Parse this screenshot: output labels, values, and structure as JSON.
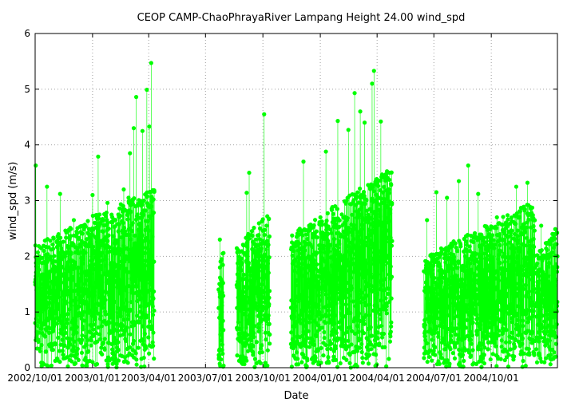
{
  "chart_data": {
    "type": "line",
    "title": "CEOP CAMP-ChaoPhrayaRiver Lampang Height 24.00 wind_spd",
    "xlabel": "Date",
    "ylabel": "wind_spd (m/s)",
    "xlim": [
      "2002/10/01",
      "2005/01/15"
    ],
    "ylim": [
      0,
      6
    ],
    "grid": true,
    "legend": "none",
    "x_ticks": [
      "2002/10/01",
      "2003/01/01",
      "2003/04/01",
      "2003/07/01",
      "2003/10/01",
      "2004/01/01",
      "2004/04/01",
      "2004/07/01",
      "2004/10/01"
    ],
    "y_ticks": [
      0,
      1,
      2,
      3,
      4,
      5,
      6
    ],
    "series_color": "#00ff00",
    "segments": [
      {
        "start": "2002/10/01",
        "end": "2003/04/10",
        "base_max": [
          2.2,
          3.3
        ],
        "spikes": [
          [
            "2002/10/02",
            3.63
          ],
          [
            "2002/10/20",
            3.25
          ],
          [
            "2002/11/10",
            3.12
          ],
          [
            "2002/12/02",
            2.65
          ],
          [
            "2003/01/01",
            3.1
          ],
          [
            "2003/01/10",
            3.79
          ],
          [
            "2003/01/25",
            2.96
          ],
          [
            "2003/02/20",
            3.2
          ],
          [
            "2003/03/02",
            3.85
          ],
          [
            "2003/03/08",
            4.3
          ],
          [
            "2003/03/12",
            4.86
          ],
          [
            "2003/03/22",
            4.25
          ],
          [
            "2003/03/29",
            4.99
          ],
          [
            "2003/04/02",
            4.33
          ],
          [
            "2003/04/05",
            5.47
          ]
        ]
      },
      {
        "start": "2003/07/22",
        "end": "2003/07/30",
        "base_max": [
          1.8,
          2.3
        ],
        "spikes": [
          [
            "2003/07/24",
            2.3
          ]
        ]
      },
      {
        "start": "2003/08/20",
        "end": "2003/10/12",
        "base_max": [
          2.2,
          2.8
        ],
        "spikes": [
          [
            "2003/09/05",
            3.14
          ],
          [
            "2003/09/09",
            3.5
          ],
          [
            "2003/10/03",
            4.55
          ]
        ]
      },
      {
        "start": "2003/11/15",
        "end": "2004/04/25",
        "base_max": [
          2.4,
          3.6
        ],
        "spikes": [
          [
            "2003/12/05",
            3.7
          ],
          [
            "2004/01/10",
            3.88
          ],
          [
            "2004/01/29",
            4.43
          ],
          [
            "2004/02/15",
            4.27
          ],
          [
            "2004/02/25",
            4.93
          ],
          [
            "2004/03/05",
            4.6
          ],
          [
            "2004/03/12",
            4.4
          ],
          [
            "2004/03/24",
            5.1
          ],
          [
            "2004/03/27",
            5.33
          ],
          [
            "2004/04/07",
            4.42
          ]
        ]
      },
      {
        "start": "2004/06/15",
        "end": "2004/12/10",
        "base_max": [
          2.0,
          3.0
        ],
        "spikes": [
          [
            "2004/06/20",
            2.65
          ],
          [
            "2004/07/05",
            3.15
          ],
          [
            "2004/07/22",
            3.05
          ],
          [
            "2004/08/10",
            3.35
          ],
          [
            "2004/08/25",
            3.63
          ],
          [
            "2004/09/10",
            3.12
          ],
          [
            "2004/10/10",
            2.7
          ],
          [
            "2004/11/10",
            3.25
          ],
          [
            "2004/11/28",
            3.32
          ]
        ]
      },
      {
        "start": "2004/12/12",
        "end": "2005/01/15",
        "base_max": [
          2.0,
          2.6
        ],
        "spikes": [
          [
            "2004/12/20",
            2.55
          ]
        ]
      }
    ]
  }
}
